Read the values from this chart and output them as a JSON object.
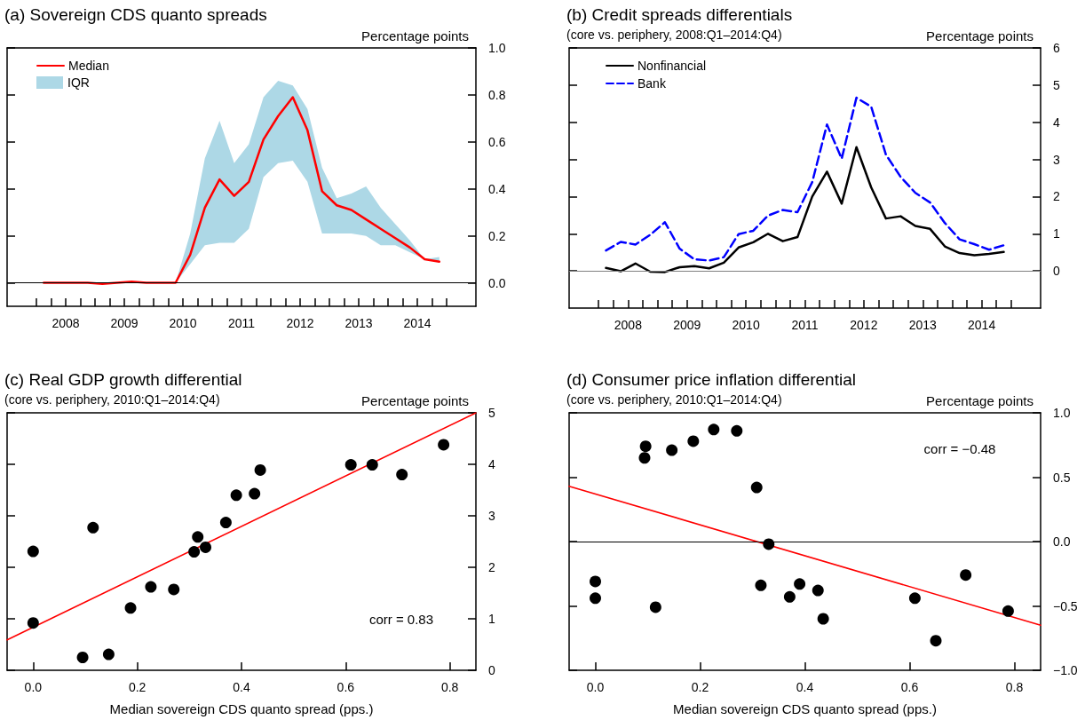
{
  "chart_data": [
    {
      "type": "line",
      "title": "(a) Sovereign CDS quanto spreads",
      "ylabel": "Percentage points",
      "legend": "top left",
      "marker": "none",
      "x": [
        2008.125,
        2008.375,
        2008.625,
        2008.875,
        2009.125,
        2009.375,
        2009.625,
        2009.875,
        2010.125,
        2010.375,
        2010.625,
        2010.875,
        2011.125,
        2011.375,
        2011.625,
        2011.875,
        2012.125,
        2012.375,
        2012.625,
        2012.875,
        2013.125,
        2013.375,
        2013.625,
        2013.875,
        2014.125,
        2014.375,
        2014.625,
        2014.875
      ],
      "xlim": [
        2007.5,
        2015.5
      ],
      "xticks": [
        {
          "value": 2008,
          "label": null
        },
        {
          "value": 2008.25,
          "label": null
        },
        {
          "value": 2008.5,
          "label": "2008"
        },
        {
          "value": 2008.75,
          "label": null
        },
        {
          "value": 2009,
          "label": null
        },
        {
          "value": 2009.25,
          "label": null
        },
        {
          "value": 2009.5,
          "label": "2009"
        },
        {
          "value": 2009.75,
          "label": null
        },
        {
          "value": 2010,
          "label": null
        },
        {
          "value": 2010.25,
          "label": null
        },
        {
          "value": 2010.5,
          "label": "2010"
        },
        {
          "value": 2010.75,
          "label": null
        },
        {
          "value": 2011,
          "label": null
        },
        {
          "value": 2011.25,
          "label": null
        },
        {
          "value": 2011.5,
          "label": "2011"
        },
        {
          "value": 2011.75,
          "label": null
        },
        {
          "value": 2012,
          "label": null
        },
        {
          "value": 2012.25,
          "label": null
        },
        {
          "value": 2012.5,
          "label": "2012"
        },
        {
          "value": 2012.75,
          "label": null
        },
        {
          "value": 2013,
          "label": null
        },
        {
          "value": 2013.25,
          "label": null
        },
        {
          "value": 2013.5,
          "label": "2013"
        },
        {
          "value": 2013.75,
          "label": null
        },
        {
          "value": 2014,
          "label": null
        },
        {
          "value": 2014.25,
          "label": null
        },
        {
          "value": 2014.5,
          "label": "2014"
        },
        {
          "value": 2014.75,
          "label": null
        },
        {
          "value": 2015,
          "label": null
        }
      ],
      "ylim": [
        -0.1,
        1
      ],
      "yticks": [
        {
          "value": 0,
          "label": "0.0"
        },
        {
          "value": 0.2,
          "label": "0.2"
        },
        {
          "value": 0.4,
          "label": "0.4"
        },
        {
          "value": 0.6,
          "label": "0.6"
        },
        {
          "value": 0.8,
          "label": "0.8"
        },
        {
          "value": 1,
          "label": "1.0"
        }
      ],
      "ref_lines": [
        {
          "axis": "y",
          "value": 0,
          "color": "#000000"
        }
      ],
      "series": [
        {
          "name": "Median",
          "color": "#ff0000",
          "values": [
            0,
            0,
            0,
            0,
            -0.005,
            0,
            0.005,
            0,
            0,
            0,
            0.12,
            0.32,
            0.44,
            0.37,
            0.43,
            0.61,
            0.71,
            0.79,
            0.65,
            0.39,
            0.33,
            0.31,
            0.27,
            0.23,
            0.19,
            0.15,
            0.1,
            0.09
          ],
          "upper": [
            0,
            0,
            0,
            0,
            0,
            0,
            0.005,
            0,
            0,
            0,
            0.21,
            0.53,
            0.69,
            0.51,
            0.59,
            0.79,
            0.86,
            0.84,
            0.74,
            0.49,
            0.36,
            0.38,
            0.41,
            0.32,
            0.25,
            0.18,
            0.1,
            0.11
          ],
          "lower": [
            0,
            0,
            0,
            0,
            -0.005,
            0,
            0,
            0,
            0,
            0,
            0.08,
            0.16,
            0.17,
            0.17,
            0.23,
            0.45,
            0.51,
            0.52,
            0.43,
            0.21,
            0.21,
            0.21,
            0.2,
            0.16,
            0.16,
            0.13,
            0.1,
            0.09
          ]
        }
      ],
      "annotations": [
        "IQR"
      ]
    },
    {
      "type": "line",
      "title": "(b) Credit spreads differentials",
      "subtitle": "(core vs. periphery, 2008:Q1–2014:Q4)",
      "ylabel": "Percentage points",
      "legend": "top left",
      "marker": "none",
      "x": [
        2008.125,
        2008.375,
        2008.625,
        2008.875,
        2009.125,
        2009.375,
        2009.625,
        2009.875,
        2010.125,
        2010.375,
        2010.625,
        2010.875,
        2011.125,
        2011.375,
        2011.625,
        2011.875,
        2012.125,
        2012.375,
        2012.625,
        2012.875,
        2013.125,
        2013.375,
        2013.625,
        2013.875,
        2014.125,
        2014.375,
        2014.625,
        2014.875
      ],
      "xlim": [
        2007.5,
        2015.5
      ],
      "xticks": [
        {
          "value": 2008,
          "label": null
        },
        {
          "value": 2008.25,
          "label": null
        },
        {
          "value": 2008.5,
          "label": "2008"
        },
        {
          "value": 2008.75,
          "label": null
        },
        {
          "value": 2009,
          "label": null
        },
        {
          "value": 2009.25,
          "label": null
        },
        {
          "value": 2009.5,
          "label": "2009"
        },
        {
          "value": 2009.75,
          "label": null
        },
        {
          "value": 2010,
          "label": null
        },
        {
          "value": 2010.25,
          "label": null
        },
        {
          "value": 2010.5,
          "label": "2010"
        },
        {
          "value": 2010.75,
          "label": null
        },
        {
          "value": 2011,
          "label": null
        },
        {
          "value": 2011.25,
          "label": null
        },
        {
          "value": 2011.5,
          "label": "2011"
        },
        {
          "value": 2011.75,
          "label": null
        },
        {
          "value": 2012,
          "label": null
        },
        {
          "value": 2012.25,
          "label": null
        },
        {
          "value": 2012.5,
          "label": "2012"
        },
        {
          "value": 2012.75,
          "label": null
        },
        {
          "value": 2013,
          "label": null
        },
        {
          "value": 2013.25,
          "label": null
        },
        {
          "value": 2013.5,
          "label": "2013"
        },
        {
          "value": 2013.75,
          "label": null
        },
        {
          "value": 2014,
          "label": null
        },
        {
          "value": 2014.25,
          "label": null
        },
        {
          "value": 2014.5,
          "label": "2014"
        },
        {
          "value": 2014.75,
          "label": null
        },
        {
          "value": 2015,
          "label": null
        }
      ],
      "ylim": [
        -1,
        6
      ],
      "yticks": [
        0,
        1,
        2,
        3,
        4,
        5,
        6
      ],
      "ref_lines": [
        {
          "axis": "y",
          "value": 0,
          "color": "#808080"
        }
      ],
      "series": [
        {
          "name": "Nonfinancial",
          "color": "#000000",
          "line_style": "solid",
          "values": [
            0.08,
            -0.01,
            0.2,
            -0.02,
            -0.03,
            0.1,
            0.13,
            0.07,
            0.22,
            0.63,
            0.77,
            1.0,
            0.8,
            0.91,
            2.0,
            2.67,
            1.81,
            3.33,
            2.25,
            1.41,
            1.47,
            1.21,
            1.13,
            0.66,
            0.48,
            0.42,
            0.46,
            0.51
          ]
        },
        {
          "name": "Bank",
          "color": "#0000ff",
          "line_style": "dashed",
          "values": [
            0.55,
            0.78,
            0.71,
            0.97,
            1.31,
            0.6,
            0.31,
            0.28,
            0.37,
            0.99,
            1.08,
            1.49,
            1.64,
            1.58,
            2.39,
            3.94,
            3.02,
            4.66,
            4.42,
            3.13,
            2.53,
            2.1,
            1.84,
            1.29,
            0.85,
            0.72,
            0.57,
            0.69
          ]
        }
      ]
    },
    {
      "type": "scatter",
      "title": "(c) Real GDP growth differential",
      "subtitle": "(core vs. periphery, 2010:Q1–2014:Q4)",
      "ylabel": "Percentage points",
      "xlabel": "Median sovereign CDS quanto spread (pps.)",
      "marker": "circle",
      "xlim": [
        -0.05,
        0.85
      ],
      "xticks": [
        {
          "value": 0,
          "label": "0.0"
        },
        {
          "value": 0.2,
          "label": "0.2"
        },
        {
          "value": 0.4,
          "label": "0.4"
        },
        {
          "value": 0.6,
          "label": "0.6"
        },
        {
          "value": 0.8,
          "label": "0.8"
        }
      ],
      "ylim": [
        0,
        5
      ],
      "yticks": [
        0,
        1,
        2,
        3,
        4,
        5
      ],
      "annotations": [
        "corr = 0.83"
      ],
      "series": [
        {
          "color": "#000000",
          "x": [
            0,
            0,
            0.095,
            0.115,
            0.145,
            0.187,
            0.226,
            0.27,
            0.309,
            0.316,
            0.331,
            0.37,
            0.39,
            0.425,
            0.436,
            0.61,
            0.651,
            0.708,
            0.788
          ],
          "values": [
            2.31,
            0.92,
            0.25,
            2.77,
            0.31,
            1.21,
            1.62,
            1.57,
            2.3,
            2.59,
            2.39,
            2.87,
            3.4,
            3.43,
            3.89,
            3.99,
            3.99,
            3.8,
            4.38
          ]
        },
        {
          "type": "line",
          "color": "#ff0000",
          "marker": "none",
          "x": [
            -0.05,
            0.85
          ],
          "values": [
            0.59,
            5.0
          ]
        }
      ]
    },
    {
      "type": "scatter",
      "title": "(d) Consumer price inflation differential",
      "subtitle": "(core vs. periphery, 2010:Q1–2014:Q4)",
      "ylabel": "Percentage points",
      "xlabel": "Median sovereign CDS quanto spread (pps.)",
      "marker": "circle",
      "xlim": [
        -0.05,
        0.85
      ],
      "xticks": [
        {
          "value": 0,
          "label": "0.0"
        },
        {
          "value": 0.2,
          "label": "0.2"
        },
        {
          "value": 0.4,
          "label": "0.4"
        },
        {
          "value": 0.6,
          "label": "0.6"
        },
        {
          "value": 0.8,
          "label": "0.8"
        }
      ],
      "ylim": [
        -1,
        1
      ],
      "yticks": [
        {
          "value": -1,
          "label": "−1.0"
        },
        {
          "value": -0.5,
          "label": "−0.5"
        },
        {
          "value": 0,
          "label": "0.0"
        },
        {
          "value": 0.5,
          "label": "0.5"
        },
        {
          "value": 1,
          "label": "1.0"
        }
      ],
      "ref_lines": [
        {
          "axis": "y",
          "value": 0,
          "color": "#000000"
        }
      ],
      "annotations": [
        "corr = −0.48"
      ],
      "series": [
        {
          "color": "#000000",
          "x": [
            0,
            0,
            0.096,
            0.094,
            0.115,
            0.146,
            0.187,
            0.226,
            0.27,
            0.308,
            0.316,
            0.331,
            0.371,
            0.39,
            0.425,
            0.435,
            0.61,
            0.65,
            0.707,
            0.788
          ],
          "values": [
            -0.31,
            -0.44,
            0.74,
            0.65,
            -0.51,
            0.71,
            0.78,
            0.87,
            0.86,
            0.42,
            -0.34,
            -0.02,
            -0.43,
            -0.33,
            -0.38,
            -0.6,
            -0.44,
            -0.77,
            -0.26,
            -0.54
          ]
        },
        {
          "type": "line",
          "color": "#ff0000",
          "marker": "none",
          "x": [
            -0.05,
            0.85
          ],
          "values": [
            0.43,
            -0.65
          ]
        }
      ]
    }
  ]
}
